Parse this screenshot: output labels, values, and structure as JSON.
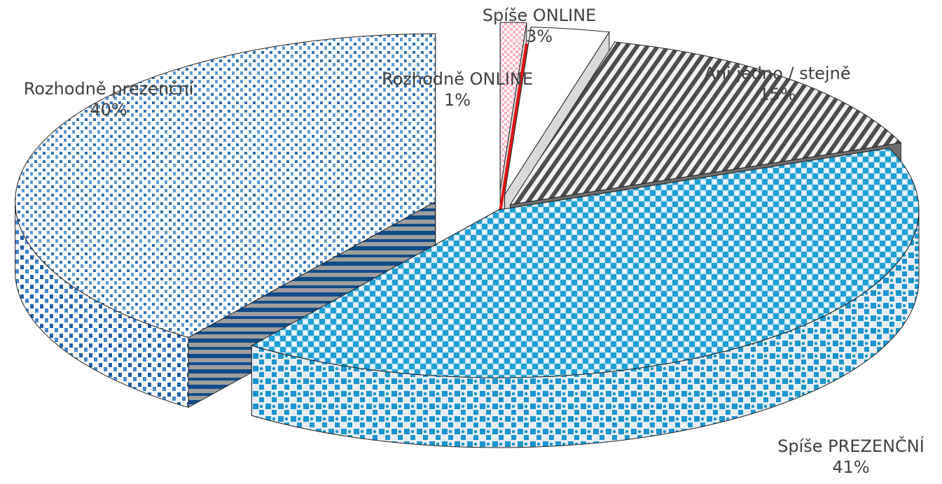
{
  "chart_data": {
    "type": "pie",
    "style": "3d-exploded",
    "title": "",
    "slices": [
      {
        "label": "Rozhodně ONLINE",
        "value": 1,
        "value_label": "1%",
        "color": "#ffb3c6",
        "accent": "#e01010",
        "pattern": "pink-checker"
      },
      {
        "label": "Spíše ONLINE",
        "value": 3,
        "value_label": "3%",
        "color": "#ffffff",
        "accent": "#d9d9d9",
        "pattern": "white"
      },
      {
        "label": "Ani jedno / stejně",
        "value": 15,
        "value_label": "15%",
        "color": "#595959",
        "accent": "#ffffff",
        "pattern": "dark-diagonal"
      },
      {
        "label": "Spíše PREZENČNÍ",
        "value": 41,
        "value_label": "41%",
        "color": "#1f9fd5",
        "accent": "#ffffff",
        "pattern": "light-blue-checker"
      },
      {
        "label": "Rozhodně prezenční",
        "value": 40,
        "value_label": "40%",
        "color": "#2f6fb0",
        "accent": "#ffffff",
        "pattern": "blue-dots"
      }
    ],
    "legend": "none",
    "grid": false
  }
}
